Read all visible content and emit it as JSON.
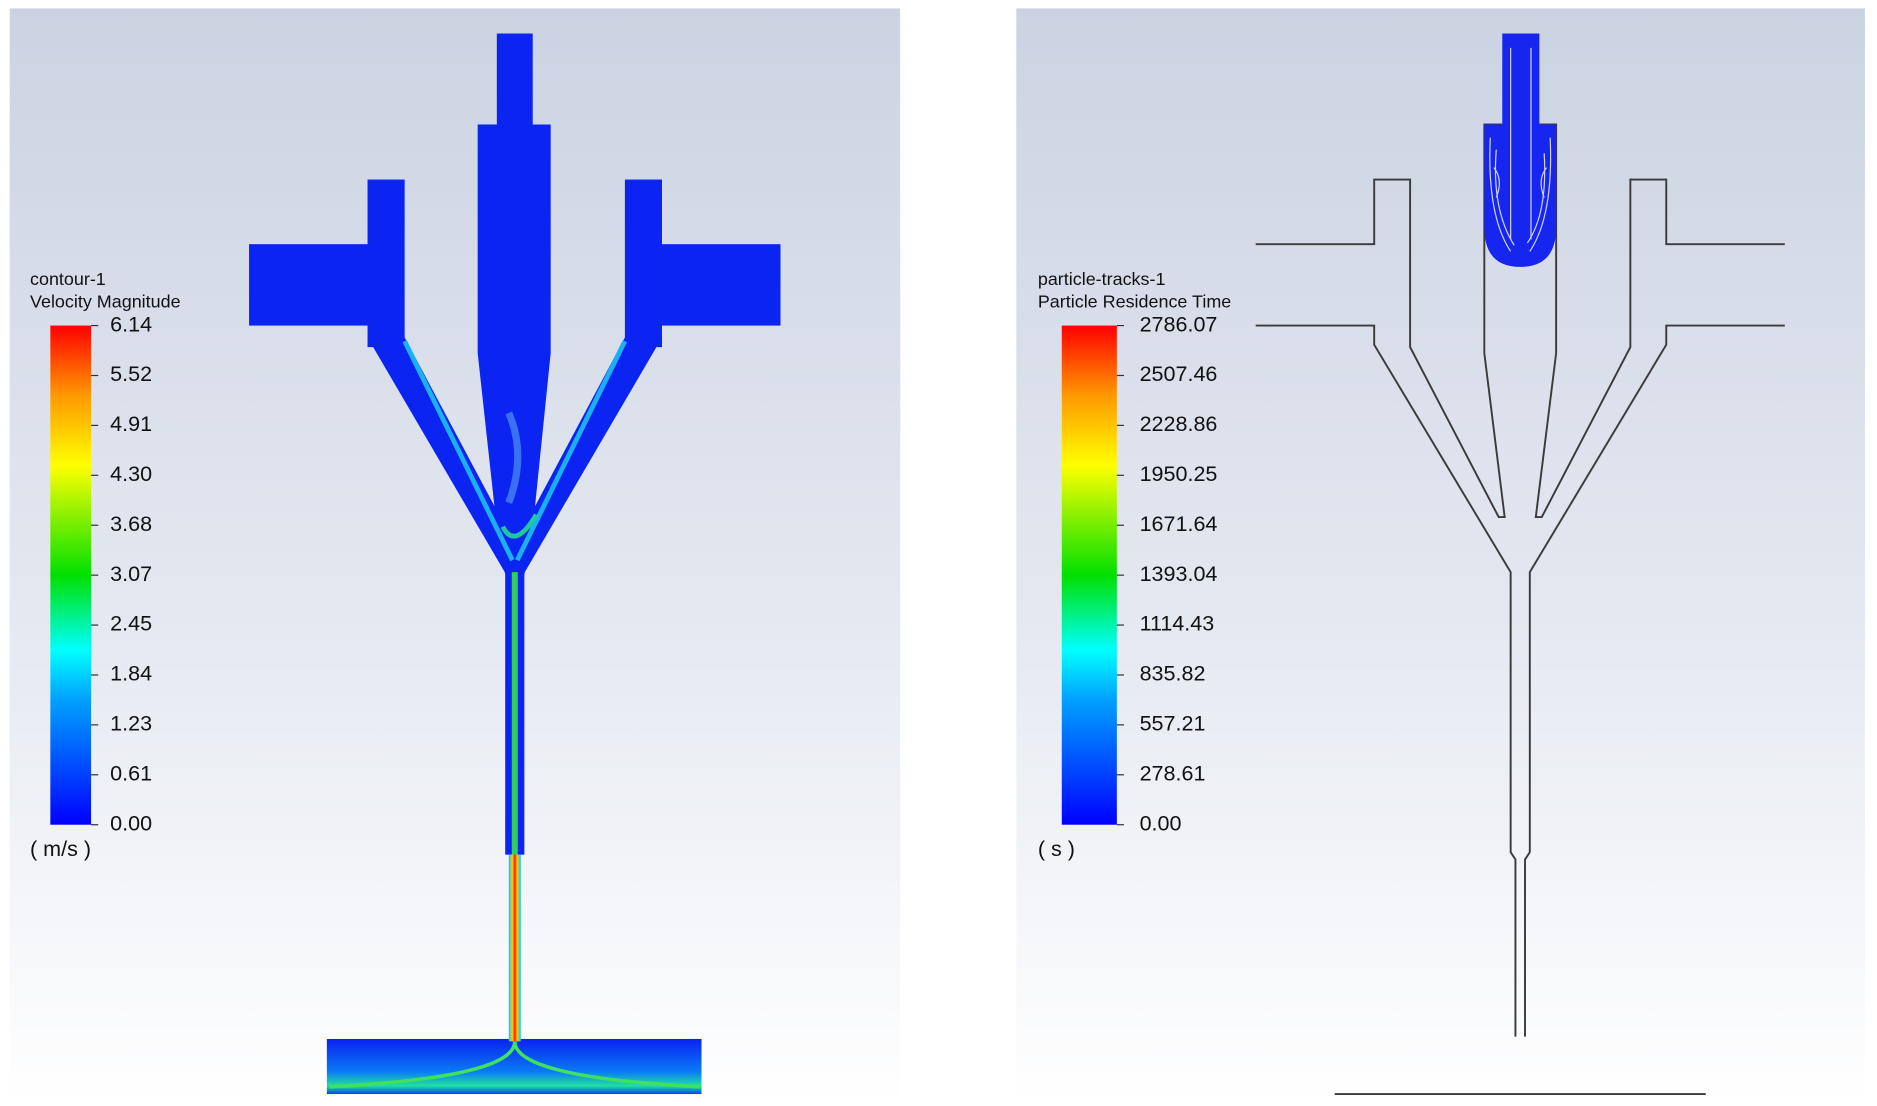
{
  "panels": [
    {
      "legend": {
        "name": "contour-1",
        "quantity": "Velocity Magnitude",
        "ticks": [
          "6.14",
          "5.52",
          "4.91",
          "4.30",
          "3.68",
          "3.07",
          "2.45",
          "1.84",
          "1.23",
          "0.61",
          "0.00"
        ],
        "unit": "( m/s )"
      }
    },
    {
      "legend": {
        "name": "particle-tracks-1",
        "quantity": "Particle Residence Time",
        "ticks": [
          "2786.07",
          "2507.46",
          "2228.86",
          "1950.25",
          "1671.64",
          "1393.04",
          "1114.43",
          "835.82",
          "557.21",
          "278.61",
          "0.00"
        ],
        "unit": "( s )"
      }
    }
  ]
}
